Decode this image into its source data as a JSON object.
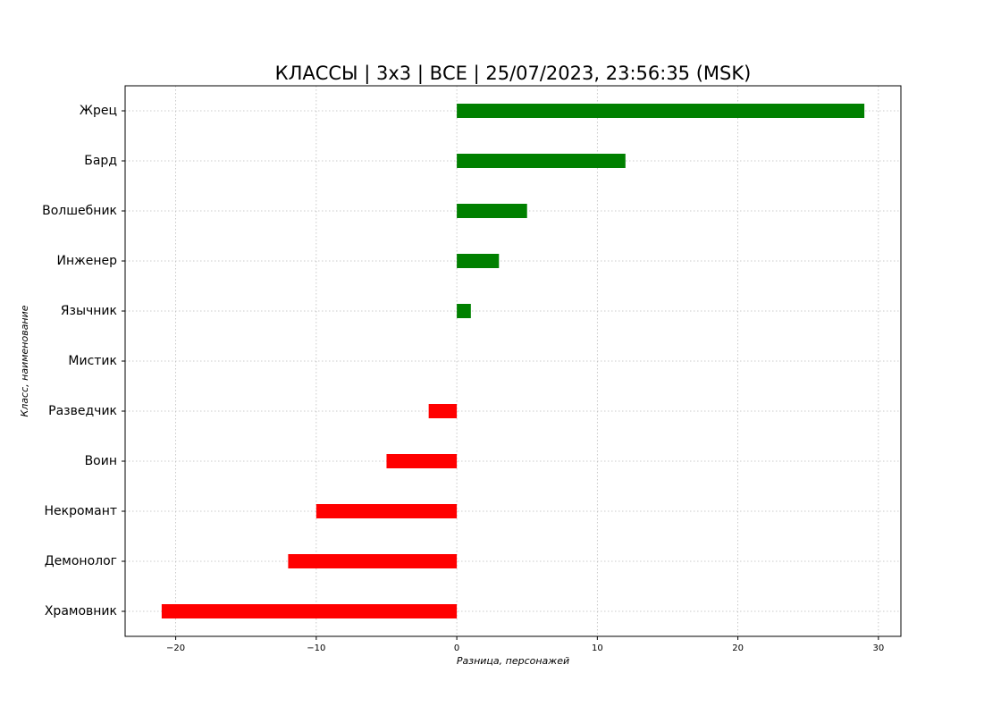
{
  "chart_data": {
    "type": "barh",
    "title": "КЛАССЫ | 3х3 | ВСЕ | 25/07/2023, 23:56:35 (MSK)",
    "x_label": "Разница, персонажей",
    "y_label": "Класс, наименование",
    "categories": [
      "Жрец",
      "Бард",
      "Волшебник",
      "Инженер",
      "Язычник",
      "Мистик",
      "Разведчик",
      "Воин",
      "Некромант",
      "Демонолог",
      "Храмовник"
    ],
    "values": [
      29,
      12,
      5,
      3,
      1,
      0,
      -2,
      -5,
      -10,
      -12,
      -21
    ],
    "colors": [
      "#008000",
      "#008000",
      "#008000",
      "#008000",
      "#008000",
      "#008000",
      "#ff0000",
      "#ff0000",
      "#ff0000",
      "#ff0000",
      "#ff0000"
    ],
    "xlim": [
      -23.6,
      31.6
    ],
    "xticks": [
      {
        "value": -20,
        "label": "−20"
      },
      {
        "value": -10,
        "label": "−10"
      },
      0,
      10,
      20,
      30
    ],
    "grid": true
  }
}
